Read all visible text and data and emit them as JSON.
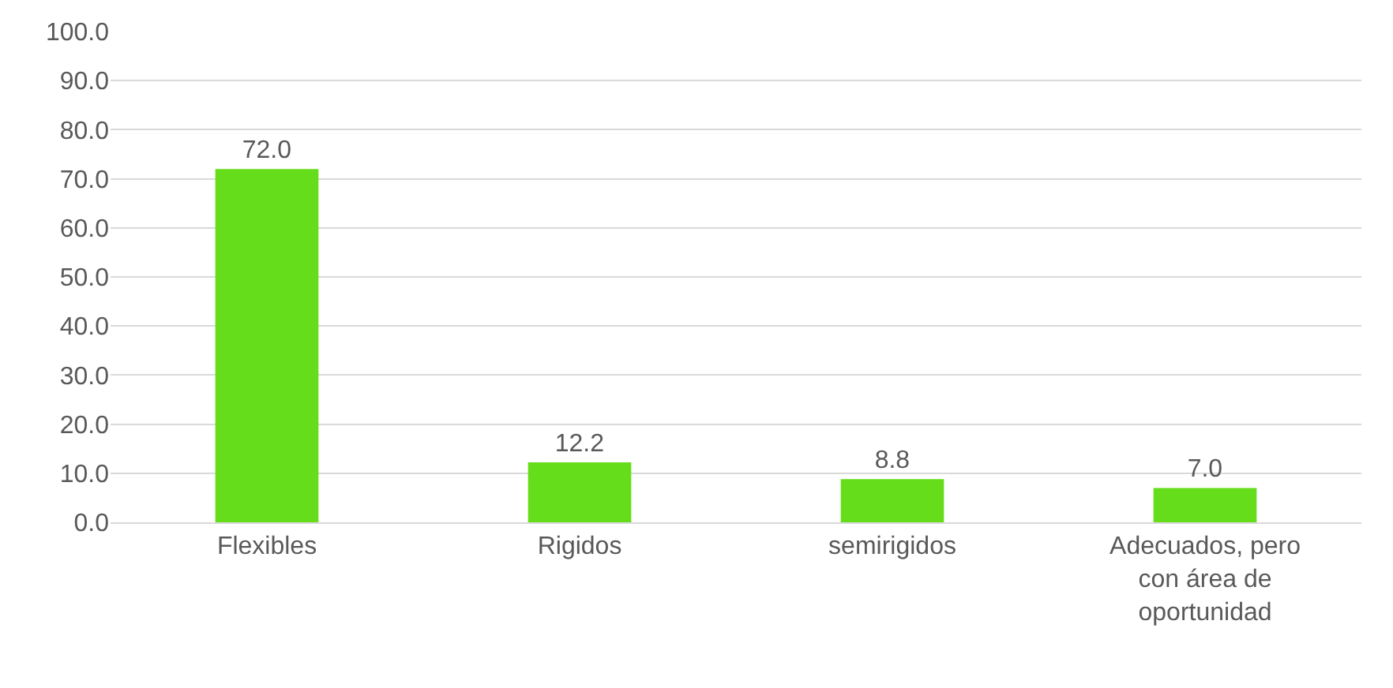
{
  "chart_data": {
    "type": "bar",
    "categories": [
      "Flexibles",
      "Rigidos",
      "semirigidos",
      "Adecuados, pero con área de oportunidad"
    ],
    "values": [
      72.0,
      12.2,
      8.8,
      7.0
    ],
    "value_labels": [
      "72.0",
      "12.2",
      "8.8",
      "7.0"
    ],
    "color": "#66dd1b",
    "ylim": [
      0,
      100
    ],
    "yticks": [
      {
        "value": 0,
        "label": "0.0"
      },
      {
        "value": 10,
        "label": "10.0"
      },
      {
        "value": 20,
        "label": "20.0"
      },
      {
        "value": 30,
        "label": "30.0"
      },
      {
        "value": 40,
        "label": "40.0"
      },
      {
        "value": 50,
        "label": "50.0"
      },
      {
        "value": 60,
        "label": "60.0"
      },
      {
        "value": 70,
        "label": "70.0"
      },
      {
        "value": 80,
        "label": "80.0"
      },
      {
        "value": 90,
        "label": "90.0"
      },
      {
        "value": 100,
        "label": "100.0"
      }
    ],
    "grid": "y",
    "legend": false
  }
}
